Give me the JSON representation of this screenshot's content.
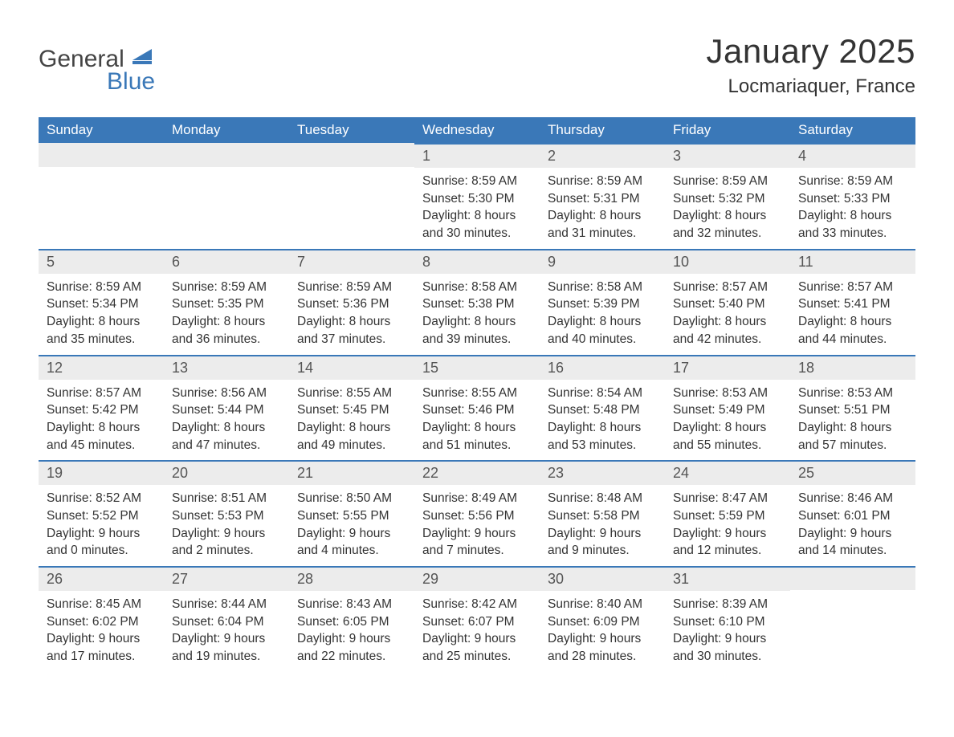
{
  "logo": {
    "text_general": "General",
    "text_blue": "Blue",
    "icon_color": "#3a78b8"
  },
  "header": {
    "month_title": "January 2025",
    "location": "Locmariaquer, France"
  },
  "theme": {
    "header_bg": "#3a78b8",
    "header_text": "#ffffff",
    "daynum_bg": "#ececec",
    "daynum_border": "#3a78b8",
    "body_text": "#333333",
    "background": "#ffffff"
  },
  "calendar": {
    "weekdays": [
      "Sunday",
      "Monday",
      "Tuesday",
      "Wednesday",
      "Thursday",
      "Friday",
      "Saturday"
    ],
    "first_weekday_index": 3,
    "days": [
      {
        "n": 1,
        "sunrise": "8:59 AM",
        "sunset": "5:30 PM",
        "daylight": "8 hours and 30 minutes."
      },
      {
        "n": 2,
        "sunrise": "8:59 AM",
        "sunset": "5:31 PM",
        "daylight": "8 hours and 31 minutes."
      },
      {
        "n": 3,
        "sunrise": "8:59 AM",
        "sunset": "5:32 PM",
        "daylight": "8 hours and 32 minutes."
      },
      {
        "n": 4,
        "sunrise": "8:59 AM",
        "sunset": "5:33 PM",
        "daylight": "8 hours and 33 minutes."
      },
      {
        "n": 5,
        "sunrise": "8:59 AM",
        "sunset": "5:34 PM",
        "daylight": "8 hours and 35 minutes."
      },
      {
        "n": 6,
        "sunrise": "8:59 AM",
        "sunset": "5:35 PM",
        "daylight": "8 hours and 36 minutes."
      },
      {
        "n": 7,
        "sunrise": "8:59 AM",
        "sunset": "5:36 PM",
        "daylight": "8 hours and 37 minutes."
      },
      {
        "n": 8,
        "sunrise": "8:58 AM",
        "sunset": "5:38 PM",
        "daylight": "8 hours and 39 minutes."
      },
      {
        "n": 9,
        "sunrise": "8:58 AM",
        "sunset": "5:39 PM",
        "daylight": "8 hours and 40 minutes."
      },
      {
        "n": 10,
        "sunrise": "8:57 AM",
        "sunset": "5:40 PM",
        "daylight": "8 hours and 42 minutes."
      },
      {
        "n": 11,
        "sunrise": "8:57 AM",
        "sunset": "5:41 PM",
        "daylight": "8 hours and 44 minutes."
      },
      {
        "n": 12,
        "sunrise": "8:57 AM",
        "sunset": "5:42 PM",
        "daylight": "8 hours and 45 minutes."
      },
      {
        "n": 13,
        "sunrise": "8:56 AM",
        "sunset": "5:44 PM",
        "daylight": "8 hours and 47 minutes."
      },
      {
        "n": 14,
        "sunrise": "8:55 AM",
        "sunset": "5:45 PM",
        "daylight": "8 hours and 49 minutes."
      },
      {
        "n": 15,
        "sunrise": "8:55 AM",
        "sunset": "5:46 PM",
        "daylight": "8 hours and 51 minutes."
      },
      {
        "n": 16,
        "sunrise": "8:54 AM",
        "sunset": "5:48 PM",
        "daylight": "8 hours and 53 minutes."
      },
      {
        "n": 17,
        "sunrise": "8:53 AM",
        "sunset": "5:49 PM",
        "daylight": "8 hours and 55 minutes."
      },
      {
        "n": 18,
        "sunrise": "8:53 AM",
        "sunset": "5:51 PM",
        "daylight": "8 hours and 57 minutes."
      },
      {
        "n": 19,
        "sunrise": "8:52 AM",
        "sunset": "5:52 PM",
        "daylight": "9 hours and 0 minutes."
      },
      {
        "n": 20,
        "sunrise": "8:51 AM",
        "sunset": "5:53 PM",
        "daylight": "9 hours and 2 minutes."
      },
      {
        "n": 21,
        "sunrise": "8:50 AM",
        "sunset": "5:55 PM",
        "daylight": "9 hours and 4 minutes."
      },
      {
        "n": 22,
        "sunrise": "8:49 AM",
        "sunset": "5:56 PM",
        "daylight": "9 hours and 7 minutes."
      },
      {
        "n": 23,
        "sunrise": "8:48 AM",
        "sunset": "5:58 PM",
        "daylight": "9 hours and 9 minutes."
      },
      {
        "n": 24,
        "sunrise": "8:47 AM",
        "sunset": "5:59 PM",
        "daylight": "9 hours and 12 minutes."
      },
      {
        "n": 25,
        "sunrise": "8:46 AM",
        "sunset": "6:01 PM",
        "daylight": "9 hours and 14 minutes."
      },
      {
        "n": 26,
        "sunrise": "8:45 AM",
        "sunset": "6:02 PM",
        "daylight": "9 hours and 17 minutes."
      },
      {
        "n": 27,
        "sunrise": "8:44 AM",
        "sunset": "6:04 PM",
        "daylight": "9 hours and 19 minutes."
      },
      {
        "n": 28,
        "sunrise": "8:43 AM",
        "sunset": "6:05 PM",
        "daylight": "9 hours and 22 minutes."
      },
      {
        "n": 29,
        "sunrise": "8:42 AM",
        "sunset": "6:07 PM",
        "daylight": "9 hours and 25 minutes."
      },
      {
        "n": 30,
        "sunrise": "8:40 AM",
        "sunset": "6:09 PM",
        "daylight": "9 hours and 28 minutes."
      },
      {
        "n": 31,
        "sunrise": "8:39 AM",
        "sunset": "6:10 PM",
        "daylight": "9 hours and 30 minutes."
      }
    ],
    "labels": {
      "sunrise": "Sunrise:",
      "sunset": "Sunset:",
      "daylight": "Daylight:"
    }
  }
}
